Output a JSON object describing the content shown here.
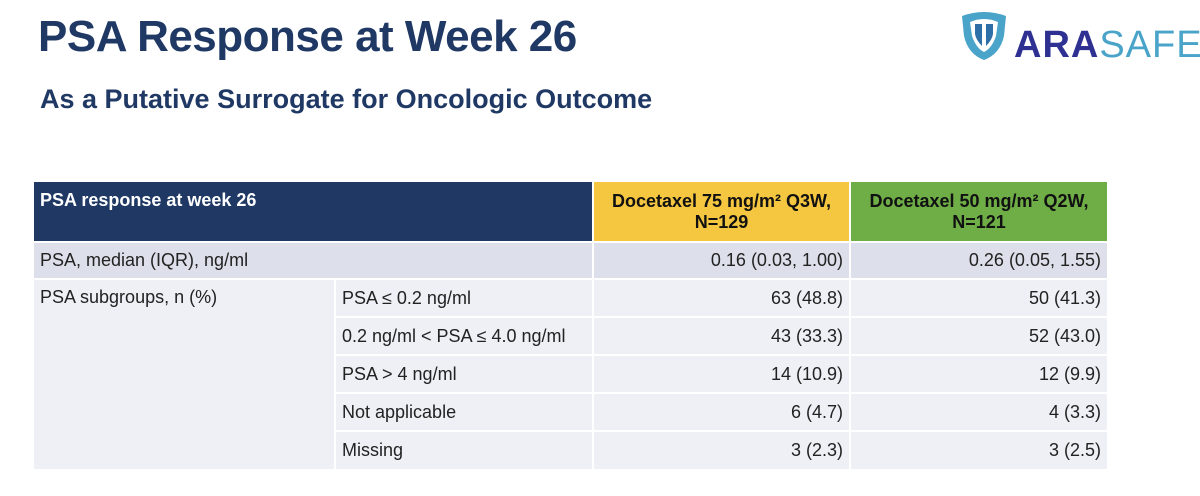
{
  "slide": {
    "title": "PSA Response at Week 26",
    "subtitle": "As a Putative Surrogate for Oncologic Outcome"
  },
  "logo": {
    "text_ara": "ARA",
    "text_safe": "SAFE",
    "icon": "shield-logo-icon",
    "colors": {
      "ara": "#2e3192",
      "safe": "#4aa3c8",
      "shield": "#4aa3c8"
    }
  },
  "colors": {
    "header_navy": "#1f3864",
    "arm_a_yellow": "#f5c63f",
    "arm_b_green": "#6fae47",
    "row_median": "#dde0ea",
    "row_sub": "#eef0f6"
  },
  "table": {
    "header": {
      "label": "PSA response at week 26",
      "arm_a": {
        "line1": "Docetaxel 75 mg/m² Q3W,",
        "line2": "N=129"
      },
      "arm_b": {
        "line1": "Docetaxel 50 mg/m² Q2W,",
        "line2": "N=121"
      }
    },
    "median_row": {
      "label": "PSA, median (IQR), ng/ml",
      "arm_a": "0.16 (0.03, 1.00)",
      "arm_b": "0.26 (0.05, 1.55)"
    },
    "subgroups": {
      "label": "PSA subgroups, n (%)",
      "rows": [
        {
          "label": "PSA ≤ 0.2 ng/ml",
          "arm_a": "63 (48.8)",
          "arm_b": "50 (41.3)"
        },
        {
          "label": "0.2 ng/ml < PSA ≤ 4.0 ng/ml",
          "arm_a": "43 (33.3)",
          "arm_b": "52 (43.0)"
        },
        {
          "label": "PSA > 4 ng/ml",
          "arm_a": "14 (10.9)",
          "arm_b": "12 (9.9)"
        },
        {
          "label": "Not applicable",
          "arm_a": "6 (4.7)",
          "arm_b": "4 (3.3)"
        },
        {
          "label": "Missing",
          "arm_a": "3 (2.3)",
          "arm_b": "3 (2.5)"
        }
      ]
    }
  }
}
